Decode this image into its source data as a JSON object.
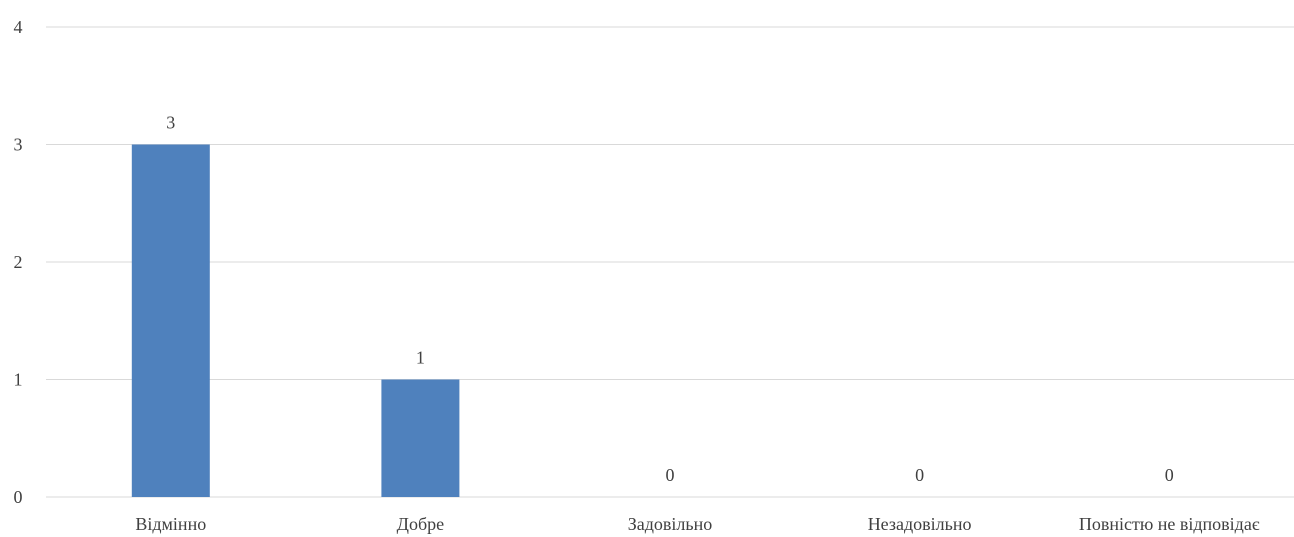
{
  "chart_data": {
    "type": "bar",
    "title": "",
    "xlabel": "",
    "ylabel": "",
    "categories": [
      "Відмінно",
      "Добре",
      "Задовільно",
      "Незадовільно",
      "Повністю не відповідає"
    ],
    "series": [
      {
        "values": [
          3,
          1,
          0,
          0,
          0
        ],
        "color": "#4f81bd"
      }
    ],
    "data_labels": [
      "3",
      "1",
      "0",
      "0",
      "0"
    ],
    "ylim": [
      0,
      4
    ],
    "yticks": [
      "0",
      "1",
      "2",
      "3",
      "4"
    ],
    "grid": true,
    "legend": "none"
  }
}
